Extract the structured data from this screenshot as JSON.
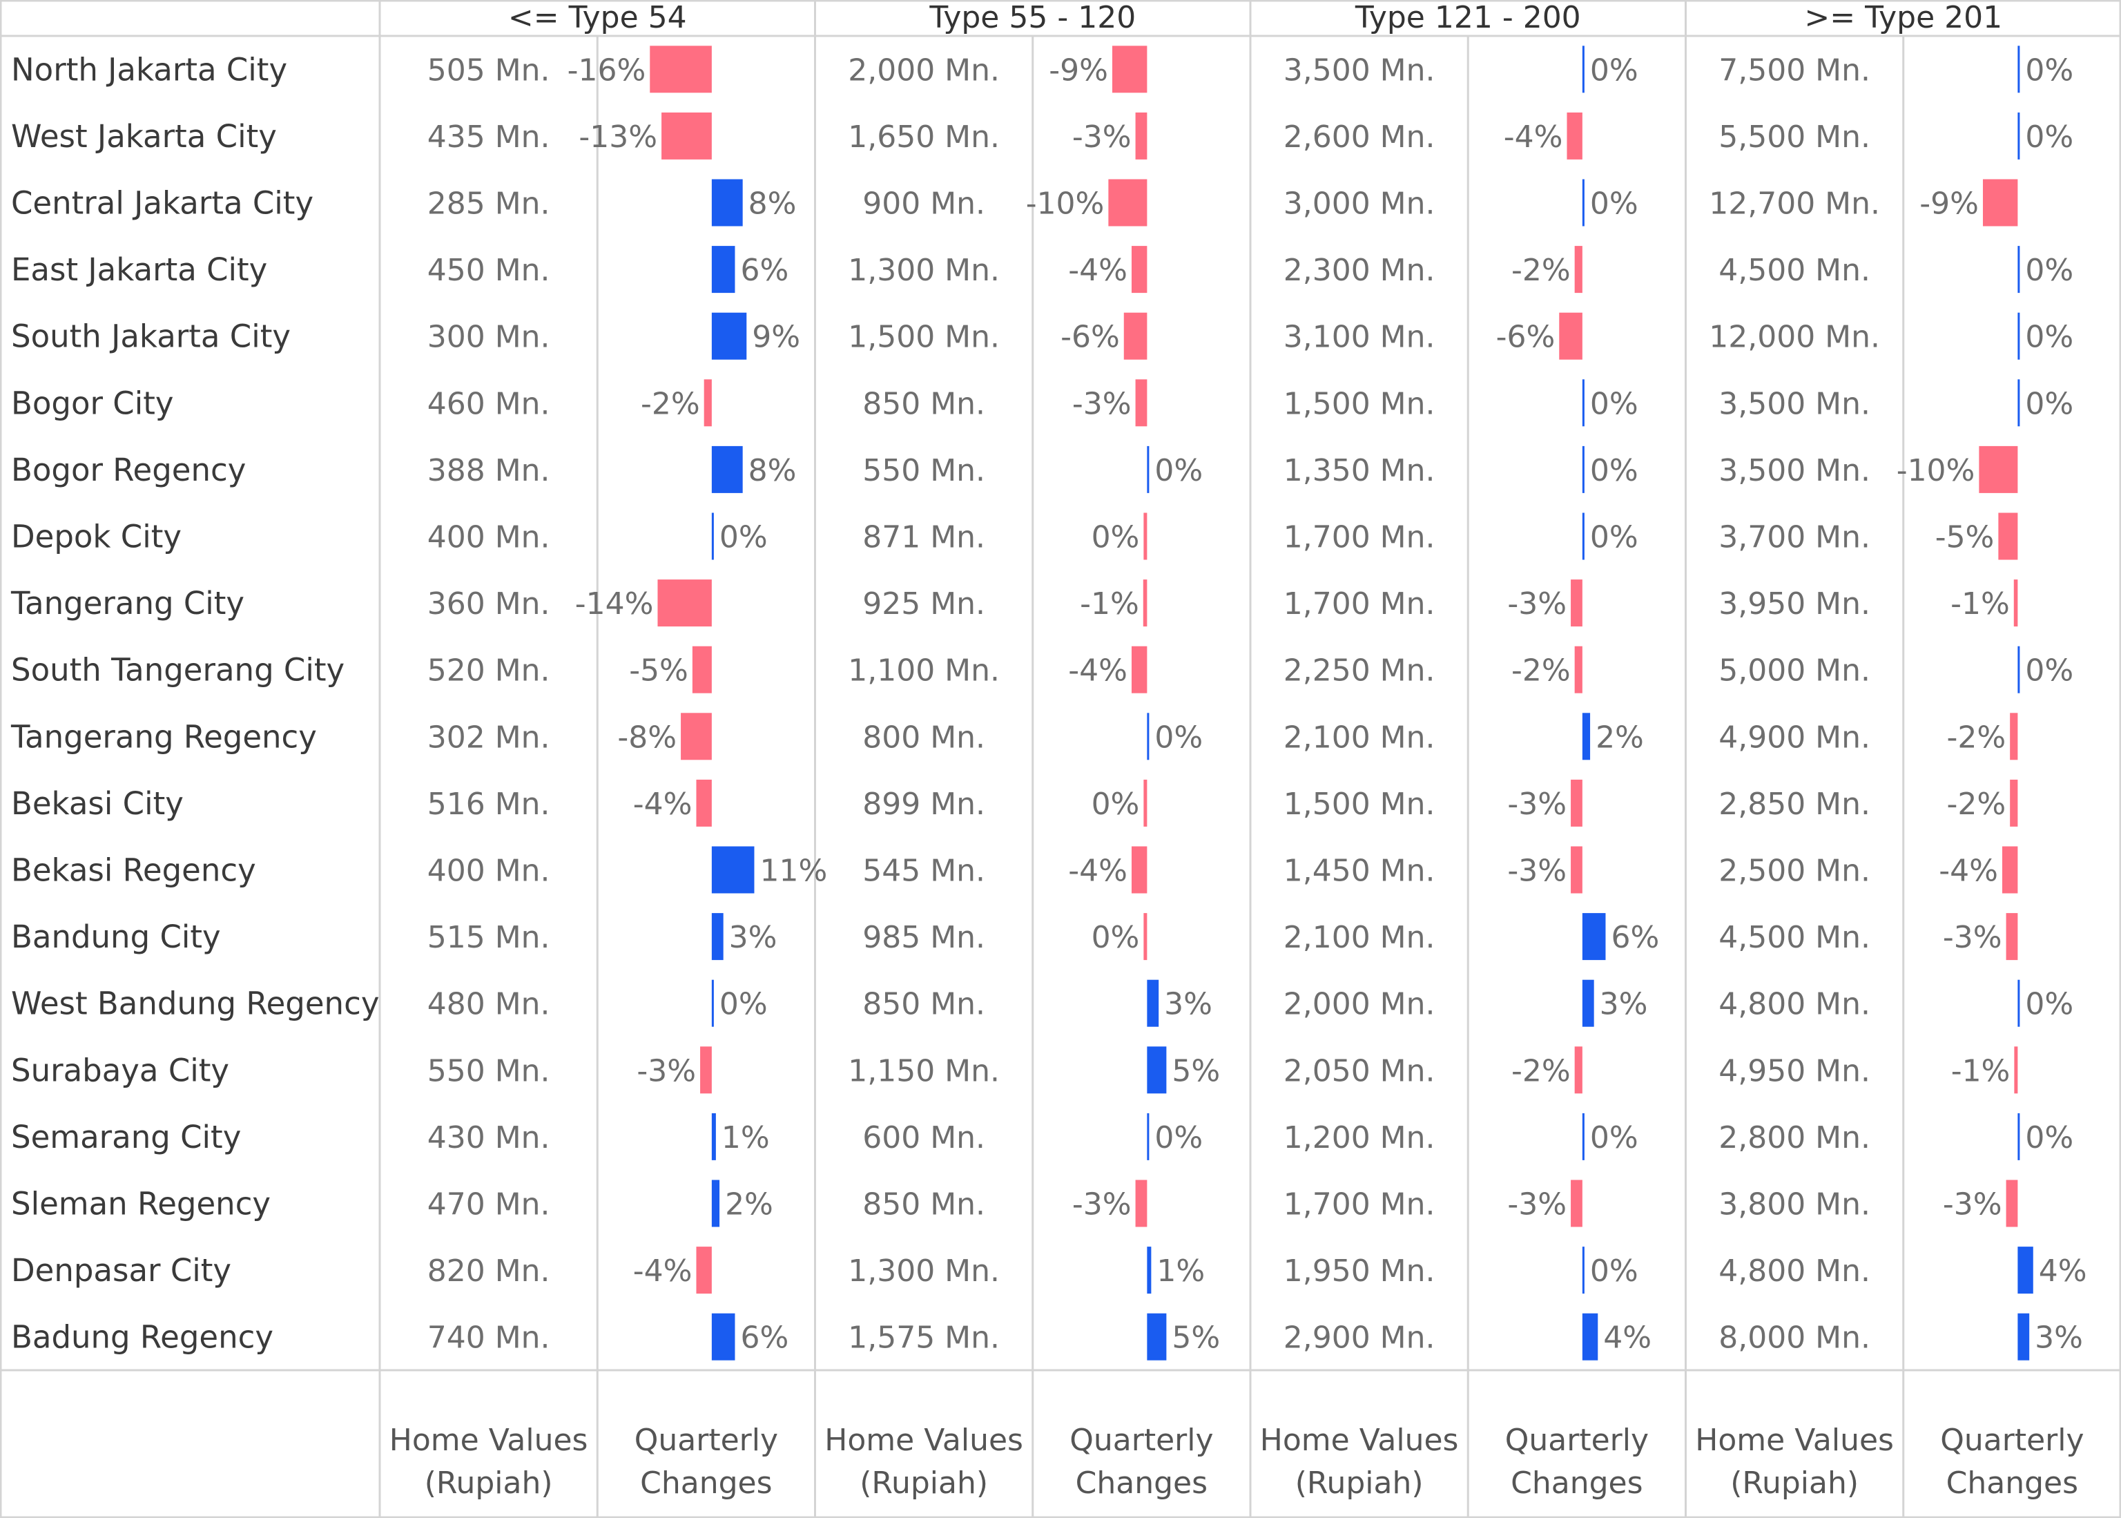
{
  "chart_data": {
    "type": "table",
    "title": "",
    "groups": [
      "<= Type 54",
      "Type 55 - 120",
      "Type 121 - 200",
      ">= Type 201"
    ],
    "column_labels": {
      "home_values": [
        "Home Values",
        "(Rupiah)"
      ],
      "quarterly_changes": [
        "Quarterly",
        "Changes"
      ]
    },
    "colors": {
      "positive": "#1a5cf0",
      "negative": "#ff6e82",
      "zero": "#1a5cf0",
      "grid": "#d4d4d4",
      "text": "#333333"
    },
    "rows": [
      {
        "city": "North Jakarta City",
        "values": [
          "505 Mn.",
          "2,000 Mn.",
          "3,500 Mn.",
          "7,500 Mn."
        ],
        "changes": [
          -16,
          -9,
          0,
          0
        ],
        "change_labels": [
          "-16%",
          "-9%",
          "0%",
          "0%"
        ]
      },
      {
        "city": "West Jakarta City",
        "values": [
          "435 Mn.",
          "1,650 Mn.",
          "2,600 Mn.",
          "5,500 Mn."
        ],
        "changes": [
          -13,
          -3,
          -4,
          0
        ],
        "change_labels": [
          "-13%",
          "-3%",
          "-4%",
          "0%"
        ]
      },
      {
        "city": "Central Jakarta City",
        "values": [
          "285 Mn.",
          "900 Mn.",
          "3,000 Mn.",
          "12,700 Mn."
        ],
        "changes": [
          8,
          -10,
          0,
          -9
        ],
        "change_labels": [
          "8%",
          "-10%",
          "0%",
          "-9%"
        ]
      },
      {
        "city": "East Jakarta City",
        "values": [
          "450 Mn.",
          "1,300 Mn.",
          "2,300 Mn.",
          "4,500 Mn."
        ],
        "changes": [
          6,
          -4,
          -2,
          0
        ],
        "change_labels": [
          "6%",
          "-4%",
          "-2%",
          "0%"
        ]
      },
      {
        "city": "South Jakarta City",
        "values": [
          "300 Mn.",
          "1,500 Mn.",
          "3,100 Mn.",
          "12,000 Mn."
        ],
        "changes": [
          9,
          -6,
          -6,
          0
        ],
        "change_labels": [
          "9%",
          "-6%",
          "-6%",
          "0%"
        ]
      },
      {
        "city": "Bogor City",
        "values": [
          "460 Mn.",
          "850 Mn.",
          "1,500 Mn.",
          "3,500 Mn."
        ],
        "changes": [
          -2,
          -3,
          0,
          0
        ],
        "change_labels": [
          "-2%",
          "-3%",
          "0%",
          "0%"
        ]
      },
      {
        "city": "Bogor Regency",
        "values": [
          "388 Mn.",
          "550 Mn.",
          "1,350 Mn.",
          "3,500 Mn."
        ],
        "changes": [
          8,
          0,
          0,
          -10
        ],
        "change_labels": [
          "8%",
          "0%",
          "0%",
          "-10%"
        ]
      },
      {
        "city": "Depok City",
        "values": [
          "400 Mn.",
          "871 Mn.",
          "1,700 Mn.",
          "3,700 Mn."
        ],
        "changes": [
          0,
          -0.3,
          0,
          -5
        ],
        "change_labels": [
          "0%",
          "0%",
          "0%",
          "-5%"
        ]
      },
      {
        "city": "Tangerang City",
        "values": [
          "360 Mn.",
          "925 Mn.",
          "1,700 Mn.",
          "3,950 Mn."
        ],
        "changes": [
          -14,
          -1,
          -3,
          -1
        ],
        "change_labels": [
          "-14%",
          "-1%",
          "-3%",
          "-1%"
        ]
      },
      {
        "city": "South Tangerang City",
        "values": [
          "520 Mn.",
          "1,100 Mn.",
          "2,250 Mn.",
          "5,000 Mn."
        ],
        "changes": [
          -5,
          -4,
          -2,
          0
        ],
        "change_labels": [
          "-5%",
          "-4%",
          "-2%",
          "0%"
        ]
      },
      {
        "city": "Tangerang Regency",
        "values": [
          "302 Mn.",
          "800 Mn.",
          "2,100 Mn.",
          "4,900 Mn."
        ],
        "changes": [
          -8,
          0,
          2,
          -2
        ],
        "change_labels": [
          "-8%",
          "0%",
          "2%",
          "-2%"
        ]
      },
      {
        "city": "Bekasi City",
        "values": [
          "516 Mn.",
          "899 Mn.",
          "1,500 Mn.",
          "2,850 Mn."
        ],
        "changes": [
          -4,
          -0.3,
          -3,
          -2
        ],
        "change_labels": [
          "-4%",
          "0%",
          "-3%",
          "-2%"
        ]
      },
      {
        "city": "Bekasi Regency",
        "values": [
          "400 Mn.",
          "545 Mn.",
          "1,450 Mn.",
          "2,500 Mn."
        ],
        "changes": [
          11,
          -4,
          -3,
          -4
        ],
        "change_labels": [
          "11%",
          "-4%",
          "-3%",
          "-4%"
        ]
      },
      {
        "city": "Bandung City",
        "values": [
          "515 Mn.",
          "985 Mn.",
          "2,100 Mn.",
          "4,500 Mn."
        ],
        "changes": [
          3,
          -0.3,
          6,
          -3
        ],
        "change_labels": [
          "3%",
          "0%",
          "6%",
          "-3%"
        ]
      },
      {
        "city": "West Bandung Regency",
        "values": [
          "480 Mn.",
          "850 Mn.",
          "2,000 Mn.",
          "4,800 Mn."
        ],
        "changes": [
          0,
          3,
          3,
          0
        ],
        "change_labels": [
          "0%",
          "3%",
          "3%",
          "0%"
        ]
      },
      {
        "city": "Surabaya City",
        "values": [
          "550 Mn.",
          "1,150 Mn.",
          "2,050 Mn.",
          "4,950 Mn."
        ],
        "changes": [
          -3,
          5,
          -2,
          -0.5
        ],
        "change_labels": [
          "-3%",
          "5%",
          "-2%",
          "-1%"
        ]
      },
      {
        "city": "Semarang City",
        "values": [
          "430 Mn.",
          "600 Mn.",
          "1,200 Mn.",
          "2,800 Mn."
        ],
        "changes": [
          1,
          0,
          0,
          0
        ],
        "change_labels": [
          "1%",
          "0%",
          "0%",
          "0%"
        ]
      },
      {
        "city": "Sleman Regency",
        "values": [
          "470 Mn.",
          "850 Mn.",
          "1,700 Mn.",
          "3,800 Mn."
        ],
        "changes": [
          2,
          -3,
          -3,
          -3
        ],
        "change_labels": [
          "2%",
          "-3%",
          "-3%",
          "-3%"
        ]
      },
      {
        "city": "Denpasar City",
        "values": [
          "820 Mn.",
          "1,300 Mn.",
          "1,950 Mn.",
          "4,800 Mn."
        ],
        "changes": [
          -4,
          1,
          0,
          4
        ],
        "change_labels": [
          "-4%",
          "1%",
          "0%",
          "4%"
        ]
      },
      {
        "city": "Badung Regency",
        "values": [
          "740 Mn.",
          "1,575 Mn.",
          "2,900 Mn.",
          "8,000 Mn."
        ],
        "changes": [
          6,
          5,
          4,
          3
        ],
        "change_labels": [
          "6%",
          "5%",
          "4%",
          "3%"
        ]
      }
    ]
  }
}
